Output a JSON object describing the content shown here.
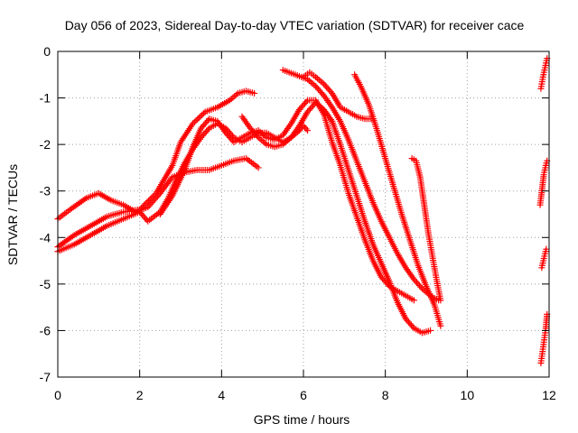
{
  "chart_data": {
    "type": "scatter",
    "title": "Day 056 of 2023, Sidereal Day-to-day VTEC variation (SDTVAR) for receiver cace",
    "xlabel": "GPS time / hours",
    "ylabel": "SDTVAR / TECUs",
    "xlim": [
      0,
      12
    ],
    "ylim": [
      -7,
      0
    ],
    "xticks": [
      "0",
      "2",
      "4",
      "6",
      "8",
      "10",
      "12"
    ],
    "yticks": [
      "0",
      "-1",
      "-2",
      "-3",
      "-4",
      "-5",
      "-6",
      "-7"
    ],
    "grid": true,
    "marker": "+",
    "color": "#ff0000",
    "series": [
      {
        "x": [
          0.0,
          0.3,
          0.7,
          1.0,
          1.3,
          1.6,
          1.9,
          2.2,
          2.5,
          2.8,
          3.1,
          3.4,
          3.7,
          4.0,
          4.3,
          4.6,
          4.9
        ],
        "y": [
          -3.6,
          -3.4,
          -3.15,
          -3.05,
          -3.2,
          -3.3,
          -3.45,
          -3.35,
          -3.05,
          -2.7,
          -2.6,
          -2.55,
          -2.55,
          -2.45,
          -2.35,
          -2.3,
          -2.5
        ]
      },
      {
        "x": [
          0.0,
          0.4,
          0.8,
          1.2,
          1.6,
          2.0,
          2.4,
          2.8,
          3.0,
          3.3,
          3.6,
          3.9,
          4.2,
          4.4,
          4.6,
          4.8
        ],
        "y": [
          -4.2,
          -3.95,
          -3.75,
          -3.55,
          -3.45,
          -3.4,
          -3.05,
          -2.45,
          -1.95,
          -1.55,
          -1.3,
          -1.2,
          -1.05,
          -0.9,
          -0.85,
          -0.9
        ]
      },
      {
        "x": [
          0.0,
          0.4,
          0.8,
          1.2,
          1.6,
          2.0,
          2.2,
          2.5,
          2.7,
          2.9,
          3.1,
          3.3,
          3.5,
          3.7,
          3.9,
          4.1,
          4.3,
          4.5,
          4.7,
          4.9,
          5.1,
          5.3,
          5.5,
          5.7,
          5.9,
          6.0,
          6.1
        ],
        "y": [
          -4.3,
          -4.15,
          -3.95,
          -3.75,
          -3.6,
          -3.45,
          -3.65,
          -3.45,
          -3.15,
          -2.75,
          -2.4,
          -2.1,
          -1.85,
          -1.65,
          -1.55,
          -1.65,
          -1.85,
          -1.95,
          -1.85,
          -1.75,
          -1.75,
          -1.85,
          -1.95,
          -1.85,
          -1.7,
          -1.6,
          -1.7
        ]
      },
      {
        "x": [
          2.5,
          2.8,
          3.1,
          3.3,
          3.5,
          3.7,
          3.9,
          4.1,
          4.3,
          4.5,
          4.7,
          4.9,
          5.1,
          5.3,
          5.5,
          5.7,
          5.9,
          6.1,
          6.3,
          6.5,
          6.7,
          6.9,
          7.1,
          7.3,
          7.5,
          7.7,
          7.9,
          8.1,
          8.3,
          8.5,
          8.7
        ],
        "y": [
          -3.5,
          -3.1,
          -2.55,
          -2.05,
          -1.65,
          -1.45,
          -1.5,
          -1.75,
          -1.95,
          -1.85,
          -1.75,
          -1.7,
          -1.85,
          -1.9,
          -1.8,
          -1.55,
          -1.25,
          -1.05,
          -1.05,
          -1.35,
          -1.95,
          -2.45,
          -3.05,
          -3.55,
          -4.05,
          -4.5,
          -4.85,
          -5.05,
          -5.15,
          -5.25,
          -5.35
        ]
      },
      {
        "x": [
          4.5,
          4.7,
          4.9,
          5.1,
          5.3,
          5.5,
          5.7,
          5.9,
          6.1,
          6.3,
          6.5,
          6.7,
          6.9,
          7.1,
          7.3,
          7.5,
          7.7,
          7.9,
          8.1,
          8.3,
          8.5,
          8.7,
          8.9,
          9.1
        ],
        "y": [
          -1.4,
          -1.65,
          -1.85,
          -2.0,
          -2.05,
          -2.0,
          -1.85,
          -1.6,
          -1.3,
          -1.1,
          -1.25,
          -1.5,
          -2.0,
          -2.55,
          -3.1,
          -3.65,
          -4.15,
          -4.55,
          -4.95,
          -5.4,
          -5.75,
          -5.95,
          -6.05,
          -6.0
        ]
      },
      {
        "x": [
          5.5,
          5.8,
          6.1,
          6.3,
          6.5,
          6.7,
          6.9,
          7.1,
          7.3,
          7.5,
          7.7,
          7.9,
          8.1,
          8.3,
          8.5,
          8.7,
          8.9,
          9.1,
          9.3
        ],
        "y": [
          -0.4,
          -0.5,
          -0.6,
          -0.75,
          -0.95,
          -1.2,
          -1.5,
          -1.9,
          -2.35,
          -2.8,
          -3.25,
          -3.65,
          -4.0,
          -4.35,
          -4.65,
          -4.9,
          -5.1,
          -5.25,
          -5.35
        ]
      },
      {
        "x": [
          6.0,
          6.15,
          6.3,
          6.5,
          6.7,
          6.9,
          7.1,
          7.3,
          7.5,
          7.7
        ],
        "y": [
          -0.55,
          -0.45,
          -0.55,
          -0.7,
          -0.9,
          -1.2,
          -1.3,
          -1.4,
          -1.45,
          -1.45
        ]
      },
      {
        "x": [
          7.25,
          7.4,
          7.6,
          7.8,
          8.0,
          8.2,
          8.4,
          8.6,
          8.8,
          9.0,
          9.2,
          9.35
        ],
        "y": [
          -0.5,
          -0.75,
          -1.15,
          -1.7,
          -2.3,
          -2.9,
          -3.5,
          -4.05,
          -4.6,
          -5.05,
          -5.45,
          -5.9
        ]
      },
      {
        "x": [
          8.65,
          8.75,
          8.85,
          8.95,
          9.05,
          9.15,
          9.25,
          9.35
        ],
        "y": [
          -2.3,
          -2.35,
          -2.7,
          -3.3,
          -3.9,
          -4.4,
          -4.9,
          -5.35
        ]
      },
      {
        "x": [
          11.8,
          11.85,
          11.9,
          11.95
        ],
        "y": [
          -0.8,
          -0.55,
          -0.35,
          -0.15
        ]
      },
      {
        "x": [
          11.78,
          11.83,
          11.87,
          11.92,
          11.95
        ],
        "y": [
          -3.3,
          -2.95,
          -2.65,
          -2.45,
          -2.35
        ]
      },
      {
        "x": [
          11.82,
          11.86,
          11.9,
          11.93
        ],
        "y": [
          -4.65,
          -4.5,
          -4.35,
          -4.25
        ]
      },
      {
        "x": [
          11.8,
          11.84,
          11.88,
          11.92,
          11.95
        ],
        "y": [
          -6.7,
          -6.45,
          -6.2,
          -5.95,
          -5.65
        ]
      }
    ]
  }
}
